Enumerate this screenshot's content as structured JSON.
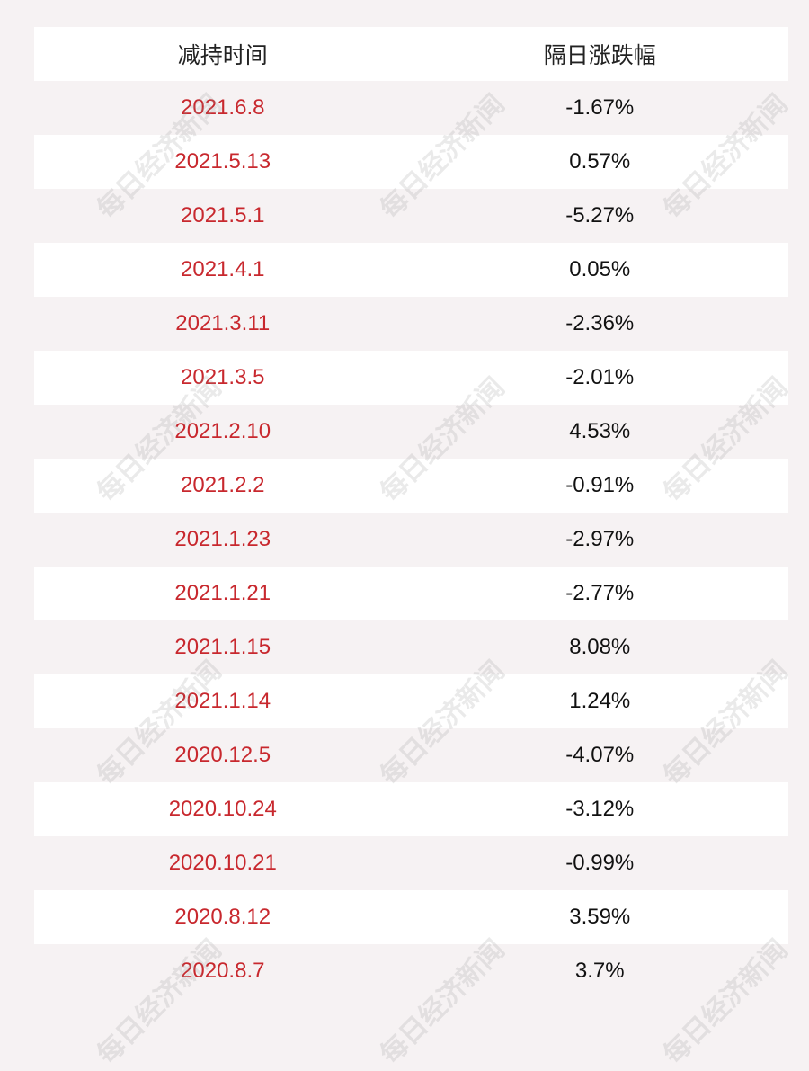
{
  "table": {
    "headers": [
      "减持时间",
      "隔日涨跌幅"
    ],
    "rows": [
      [
        "2021.6.8",
        "-1.67%"
      ],
      [
        "2021.5.13",
        "0.57%"
      ],
      [
        "2021.5.1",
        "-5.27%"
      ],
      [
        "2021.4.1",
        "0.05%"
      ],
      [
        "2021.3.11",
        "-2.36%"
      ],
      [
        "2021.3.5",
        "-2.01%"
      ],
      [
        "2021.2.10",
        "4.53%"
      ],
      [
        "2021.2.2",
        "-0.91%"
      ],
      [
        "2021.1.23",
        "-2.97%"
      ],
      [
        "2021.1.21",
        "-2.77%"
      ],
      [
        "2021.1.15",
        "8.08%"
      ],
      [
        "2021.1.14",
        "1.24%"
      ],
      [
        "2020.12.5",
        "-4.07%"
      ],
      [
        "2020.10.24",
        "-3.12%"
      ],
      [
        "2020.10.21",
        "-0.99%"
      ],
      [
        "2020.8.12",
        "3.59%"
      ],
      [
        "2020.8.7",
        "3.7%"
      ]
    ]
  },
  "watermark": {
    "text": "每日经济新闻"
  },
  "colors": {
    "date_text": "#c8282e",
    "value_text": "#111111",
    "background": "#f6f2f3",
    "row_stripe": "#ffffff"
  }
}
